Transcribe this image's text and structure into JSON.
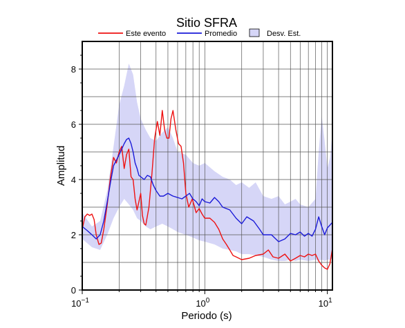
{
  "chart_data": {
    "type": "line",
    "title": "Sitio SFRA",
    "xlabel": "Periodo (s)",
    "ylabel": "Amplitud",
    "x_scale": "log",
    "xlim": [
      0.1,
      11
    ],
    "ylim": [
      0,
      9
    ],
    "grid": true,
    "legend_position": "top",
    "x_tick_labels": [
      {
        "base": "10",
        "exp": "−1"
      },
      {
        "base": "10",
        "exp": "0"
      },
      {
        "base": "10",
        "exp": "1"
      }
    ],
    "y_ticks": [
      0,
      2,
      4,
      6,
      8
    ],
    "legend": [
      {
        "label": "Este evento",
        "kind": "line",
        "color": "#ee1111"
      },
      {
        "label": "Promedio",
        "kind": "line",
        "color": "#1a1ad8"
      },
      {
        "label": "Desv. Est.",
        "kind": "band",
        "color": "#d6d6f7"
      }
    ],
    "series": [
      {
        "name": "Este evento",
        "color": "#ee1111",
        "points": [
          [
            0.1,
            2.2
          ],
          [
            0.105,
            2.65
          ],
          [
            0.11,
            2.75
          ],
          [
            0.115,
            2.7
          ],
          [
            0.12,
            2.75
          ],
          [
            0.125,
            2.55
          ],
          [
            0.13,
            2.0
          ],
          [
            0.137,
            1.65
          ],
          [
            0.143,
            1.7
          ],
          [
            0.15,
            2.2
          ],
          [
            0.16,
            3.1
          ],
          [
            0.17,
            4.1
          ],
          [
            0.18,
            4.8
          ],
          [
            0.19,
            4.6
          ],
          [
            0.2,
            5.0
          ],
          [
            0.21,
            5.2
          ],
          [
            0.22,
            4.4
          ],
          [
            0.23,
            4.9
          ],
          [
            0.24,
            5.1
          ],
          [
            0.25,
            4.1
          ],
          [
            0.26,
            4.0
          ],
          [
            0.27,
            3.3
          ],
          [
            0.28,
            2.9
          ],
          [
            0.29,
            3.2
          ],
          [
            0.3,
            3.5
          ],
          [
            0.31,
            2.7
          ],
          [
            0.32,
            2.4
          ],
          [
            0.33,
            2.35
          ],
          [
            0.35,
            3.0
          ],
          [
            0.37,
            4.2
          ],
          [
            0.39,
            5.5
          ],
          [
            0.41,
            6.1
          ],
          [
            0.43,
            5.6
          ],
          [
            0.45,
            6.5
          ],
          [
            0.47,
            5.8
          ],
          [
            0.49,
            5.5
          ],
          [
            0.51,
            5.5
          ],
          [
            0.53,
            6.2
          ],
          [
            0.55,
            6.5
          ],
          [
            0.58,
            5.8
          ],
          [
            0.61,
            5.3
          ],
          [
            0.64,
            5.2
          ],
          [
            0.67,
            4.6
          ],
          [
            0.7,
            3.5
          ],
          [
            0.74,
            3.0
          ],
          [
            0.79,
            3.3
          ],
          [
            0.85,
            2.8
          ],
          [
            0.9,
            2.95
          ],
          [
            0.95,
            2.75
          ],
          [
            1.0,
            2.6
          ],
          [
            1.1,
            2.6
          ],
          [
            1.2,
            2.45
          ],
          [
            1.3,
            2.2
          ],
          [
            1.4,
            1.85
          ],
          [
            1.5,
            1.65
          ],
          [
            1.6,
            1.45
          ],
          [
            1.7,
            1.25
          ],
          [
            1.8,
            1.2
          ],
          [
            2.0,
            1.1
          ],
          [
            2.3,
            1.15
          ],
          [
            2.6,
            1.25
          ],
          [
            3.0,
            1.3
          ],
          [
            3.3,
            1.45
          ],
          [
            3.6,
            1.2
          ],
          [
            4.0,
            1.15
          ],
          [
            4.5,
            1.3
          ],
          [
            5.0,
            1.05
          ],
          [
            5.5,
            1.15
          ],
          [
            6.0,
            1.25
          ],
          [
            6.5,
            1.2
          ],
          [
            7.0,
            1.3
          ],
          [
            7.5,
            1.25
          ],
          [
            8.0,
            1.3
          ],
          [
            8.5,
            1.05
          ],
          [
            9.0,
            0.9
          ],
          [
            9.5,
            0.8
          ],
          [
            10.0,
            0.75
          ],
          [
            10.5,
            0.95
          ],
          [
            11.0,
            1.5
          ]
        ]
      },
      {
        "name": "Promedio",
        "color": "#1a1ad8",
        "points": [
          [
            0.1,
            2.3
          ],
          [
            0.11,
            2.15
          ],
          [
            0.12,
            2.0
          ],
          [
            0.13,
            1.85
          ],
          [
            0.14,
            2.0
          ],
          [
            0.15,
            2.5
          ],
          [
            0.16,
            3.2
          ],
          [
            0.17,
            3.9
          ],
          [
            0.18,
            4.5
          ],
          [
            0.19,
            4.7
          ],
          [
            0.2,
            4.9
          ],
          [
            0.21,
            5.1
          ],
          [
            0.22,
            5.3
          ],
          [
            0.23,
            5.45
          ],
          [
            0.24,
            5.5
          ],
          [
            0.25,
            5.3
          ],
          [
            0.26,
            5.0
          ],
          [
            0.27,
            4.6
          ],
          [
            0.28,
            4.4
          ],
          [
            0.29,
            4.15
          ],
          [
            0.3,
            4.1
          ],
          [
            0.32,
            4.0
          ],
          [
            0.34,
            4.15
          ],
          [
            0.36,
            4.1
          ],
          [
            0.38,
            3.8
          ],
          [
            0.4,
            3.6
          ],
          [
            0.43,
            3.4
          ],
          [
            0.46,
            3.4
          ],
          [
            0.5,
            3.5
          ],
          [
            0.55,
            3.4
          ],
          [
            0.6,
            3.35
          ],
          [
            0.65,
            3.3
          ],
          [
            0.7,
            3.4
          ],
          [
            0.75,
            3.5
          ],
          [
            0.8,
            3.3
          ],
          [
            0.85,
            3.2
          ],
          [
            0.9,
            3.05
          ],
          [
            0.95,
            3.3
          ],
          [
            1.0,
            3.2
          ],
          [
            1.1,
            3.15
          ],
          [
            1.2,
            3.35
          ],
          [
            1.3,
            3.2
          ],
          [
            1.4,
            3.0
          ],
          [
            1.6,
            2.9
          ],
          [
            1.8,
            2.6
          ],
          [
            2.0,
            2.4
          ],
          [
            2.2,
            2.65
          ],
          [
            2.5,
            2.5
          ],
          [
            2.8,
            2.2
          ],
          [
            3.0,
            2.0
          ],
          [
            3.5,
            2.0
          ],
          [
            4.0,
            1.75
          ],
          [
            4.5,
            1.85
          ],
          [
            5.0,
            2.05
          ],
          [
            5.5,
            2.0
          ],
          [
            6.0,
            2.1
          ],
          [
            6.5,
            1.95
          ],
          [
            7.0,
            2.05
          ],
          [
            7.5,
            1.95
          ],
          [
            8.0,
            2.2
          ],
          [
            8.5,
            2.65
          ],
          [
            9.0,
            2.3
          ],
          [
            9.5,
            2.0
          ],
          [
            10.0,
            2.25
          ],
          [
            10.5,
            2.35
          ],
          [
            11.0,
            2.45
          ]
        ]
      }
    ],
    "band": {
      "name": "Desv. Est.",
      "color": "#d6d6f7",
      "upper": [
        [
          0.1,
          2.8
        ],
        [
          0.12,
          2.3
        ],
        [
          0.14,
          2.5
        ],
        [
          0.16,
          3.6
        ],
        [
          0.18,
          5.2
        ],
        [
          0.2,
          6.7
        ],
        [
          0.22,
          7.4
        ],
        [
          0.24,
          8.2
        ],
        [
          0.26,
          7.8
        ],
        [
          0.28,
          6.8
        ],
        [
          0.3,
          6.2
        ],
        [
          0.33,
          5.8
        ],
        [
          0.36,
          5.5
        ],
        [
          0.4,
          5.4
        ],
        [
          0.45,
          5.7
        ],
        [
          0.5,
          5.9
        ],
        [
          0.55,
          5.5
        ],
        [
          0.6,
          5.0
        ],
        [
          0.7,
          4.9
        ],
        [
          0.8,
          4.6
        ],
        [
          0.9,
          4.5
        ],
        [
          1.0,
          4.6
        ],
        [
          1.2,
          4.3
        ],
        [
          1.4,
          4.1
        ],
        [
          1.6,
          4.0
        ],
        [
          1.8,
          3.8
        ],
        [
          2.0,
          3.9
        ],
        [
          2.3,
          3.7
        ],
        [
          2.6,
          3.9
        ],
        [
          3.0,
          3.4
        ],
        [
          3.5,
          3.3
        ],
        [
          4.0,
          3.4
        ],
        [
          4.5,
          3.1
        ],
        [
          5.0,
          3.2
        ],
        [
          5.5,
          3.3
        ],
        [
          6.0,
          3.1
        ],
        [
          7.0,
          3.0
        ],
        [
          8.0,
          3.3
        ],
        [
          8.5,
          5.0
        ],
        [
          9.0,
          6.3
        ],
        [
          9.5,
          5.4
        ],
        [
          10.0,
          4.4
        ],
        [
          10.5,
          4.8
        ],
        [
          11.0,
          5.7
        ]
      ],
      "lower": [
        [
          0.1,
          1.85
        ],
        [
          0.12,
          1.55
        ],
        [
          0.14,
          1.45
        ],
        [
          0.16,
          2.0
        ],
        [
          0.18,
          2.6
        ],
        [
          0.2,
          3.0
        ],
        [
          0.22,
          3.3
        ],
        [
          0.24,
          3.1
        ],
        [
          0.26,
          2.9
        ],
        [
          0.28,
          2.6
        ],
        [
          0.3,
          2.5
        ],
        [
          0.33,
          2.3
        ],
        [
          0.36,
          2.2
        ],
        [
          0.4,
          2.3
        ],
        [
          0.45,
          2.4
        ],
        [
          0.5,
          2.3
        ],
        [
          0.55,
          2.2
        ],
        [
          0.6,
          2.1
        ],
        [
          0.7,
          2.0
        ],
        [
          0.8,
          1.9
        ],
        [
          0.9,
          1.8
        ],
        [
          1.0,
          1.75
        ],
        [
          1.2,
          1.65
        ],
        [
          1.4,
          1.5
        ],
        [
          1.6,
          1.45
        ],
        [
          1.8,
          1.4
        ],
        [
          2.0,
          1.3
        ],
        [
          2.3,
          1.3
        ],
        [
          2.6,
          1.25
        ],
        [
          3.0,
          1.2
        ],
        [
          3.5,
          1.1
        ],
        [
          4.0,
          1.05
        ],
        [
          4.5,
          1.05
        ],
        [
          5.0,
          1.1
        ],
        [
          5.5,
          1.05
        ],
        [
          6.0,
          1.1
        ],
        [
          7.0,
          1.05
        ],
        [
          8.0,
          1.1
        ],
        [
          8.5,
          1.05
        ],
        [
          9.0,
          1.1
        ],
        [
          9.5,
          1.05
        ],
        [
          10.0,
          1.1
        ],
        [
          10.5,
          1.1
        ],
        [
          11.0,
          1.15
        ]
      ]
    }
  }
}
